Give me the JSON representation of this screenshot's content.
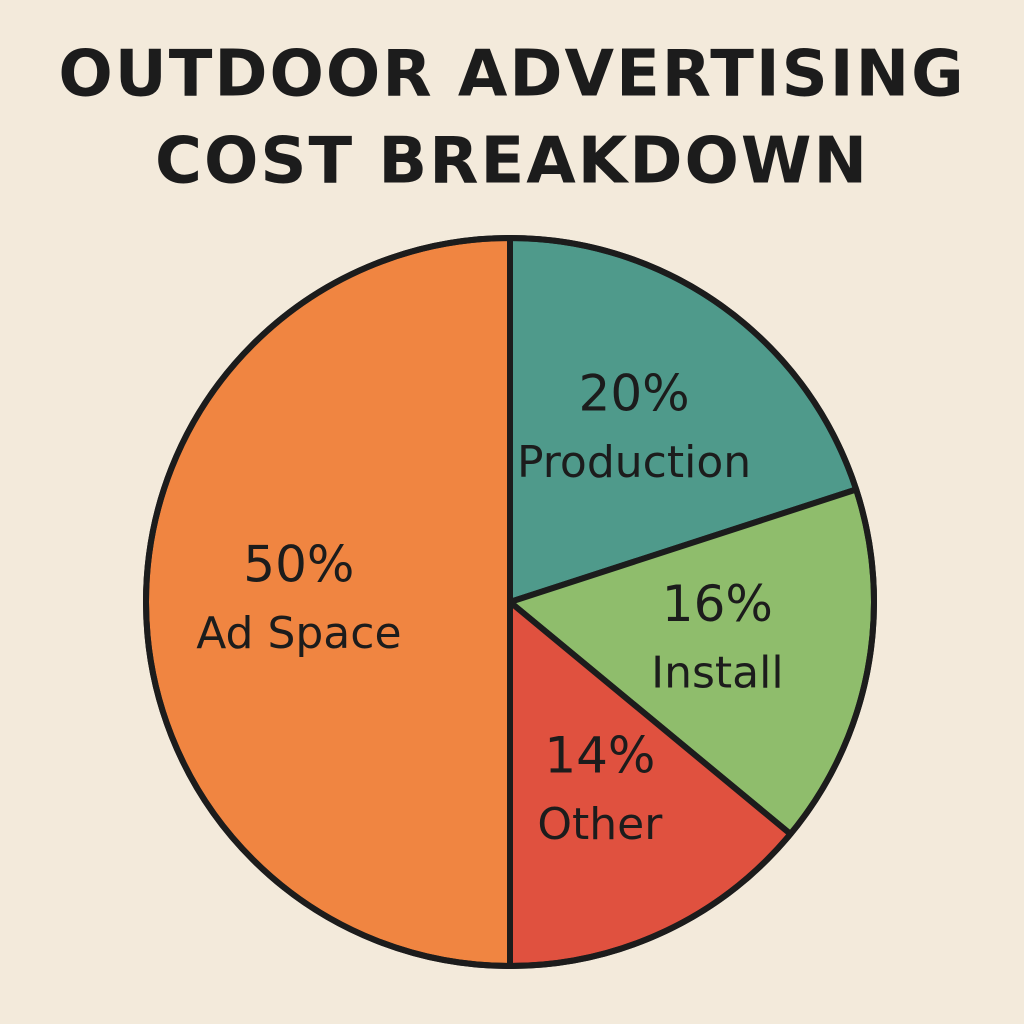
{
  "chart_data": {
    "type": "pie",
    "title": [
      "OUTDOOR ADVERTISING",
      "COST BREAKDOWN"
    ],
    "categories": [
      "Production",
      "Install",
      "Other",
      "Ad Space"
    ],
    "values": [
      20,
      16,
      14,
      50
    ],
    "value_labels": [
      "20%",
      "16%",
      "14%",
      "50%"
    ],
    "colors": [
      "#4f9a8b",
      "#8fbd6c",
      "#e0513f",
      "#f08541"
    ]
  }
}
